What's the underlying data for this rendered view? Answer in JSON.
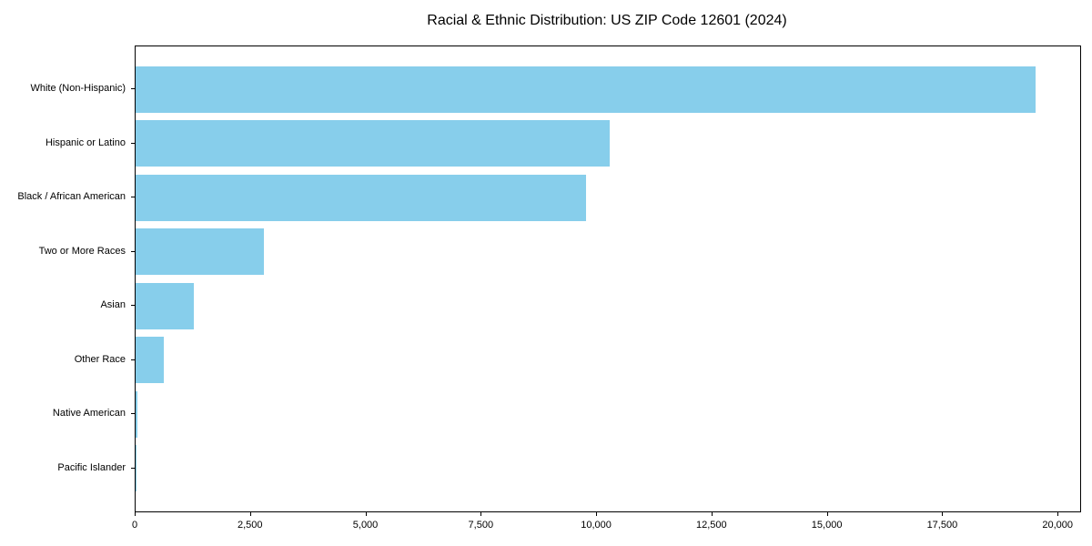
{
  "chart_data": {
    "type": "bar",
    "orientation": "horizontal",
    "title": "Racial & Ethnic Distribution: US ZIP Code 12601 (2024)",
    "categories": [
      "White (Non-Hispanic)",
      "Hispanic or Latino",
      "Black / African American",
      "Two or More Races",
      "Asian",
      "Other Race",
      "Native American",
      "Pacific Islander"
    ],
    "values": [
      19500,
      10280,
      9770,
      2780,
      1270,
      610,
      40,
      10
    ],
    "xlabel": "",
    "ylabel": "",
    "xlim": [
      0,
      20470
    ],
    "x_ticks": [
      0,
      2500,
      5000,
      7500,
      10000,
      12500,
      15000,
      17500,
      20000
    ],
    "x_tick_labels": [
      "0",
      "2,500",
      "5,000",
      "7,500",
      "10,000",
      "12,500",
      "15,000",
      "17,500",
      "20,000"
    ],
    "grid": false,
    "legend_position": "none",
    "bar_color": "#87ceeb",
    "axis_color": "#000000",
    "background_color": "#ffffff"
  }
}
